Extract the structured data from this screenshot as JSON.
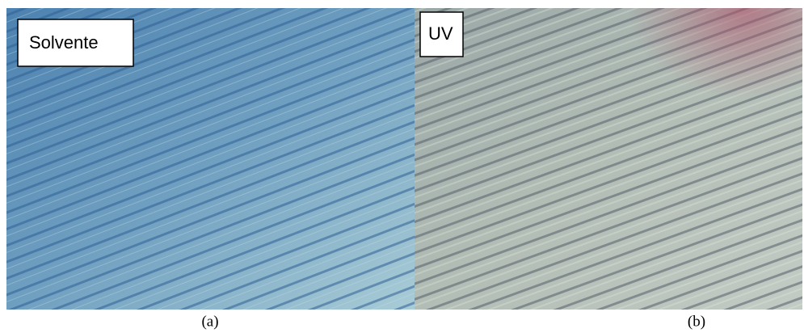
{
  "panels": [
    {
      "label": "Solvente",
      "caption": "(a)"
    },
    {
      "label": "UV",
      "caption": "(b)"
    }
  ]
}
